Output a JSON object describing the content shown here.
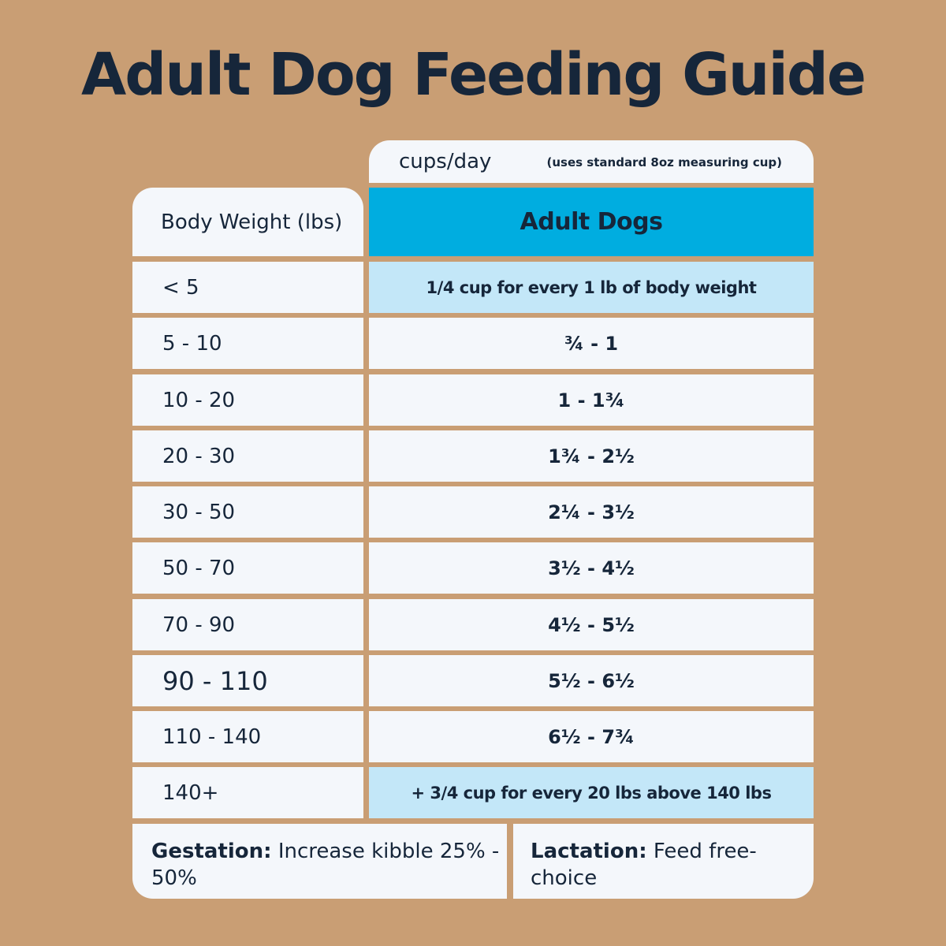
{
  "title": "Adult Dog Feeding Guide",
  "units": {
    "label": "cups/day",
    "note": "(uses standard 8oz measuring cup)"
  },
  "header": {
    "weight_col": "Body Weight (lbs)",
    "amount_col": "Adult Dogs"
  },
  "rows": [
    {
      "weight": "< 5",
      "amount": "1/4 cup for every 1 lb of body weight"
    },
    {
      "weight": "5 - 10",
      "amount": "¾ - 1"
    },
    {
      "weight": "10 - 20",
      "amount": "1 - 1¾"
    },
    {
      "weight": "20 - 30",
      "amount": "1¾ - 2½"
    },
    {
      "weight": "30 - 50",
      "amount": "2¼ - 3½"
    },
    {
      "weight": "50 - 70",
      "amount": "3½ - 4½"
    },
    {
      "weight": "70 - 90",
      "amount": "4½ - 5½"
    },
    {
      "weight": "90 - 110",
      "amount": "5½ - 6½"
    },
    {
      "weight": "110 - 140",
      "amount": "6½ - 7¾"
    },
    {
      "weight": "140+",
      "amount": "+ 3/4 cup for every 20 lbs above 140 lbs"
    }
  ],
  "footer": {
    "gestation_label": "Gestation:",
    "gestation_text": "Increase kibble 25% - 50%",
    "lactation_label": "Lactation:",
    "lactation_text": "Feed free-choice"
  },
  "colors": {
    "background": "#c99e74",
    "text": "#16263a",
    "header_blue": "#00ade0",
    "highlight_blue": "#c3e7f8",
    "cell": "#f4f7fb"
  }
}
